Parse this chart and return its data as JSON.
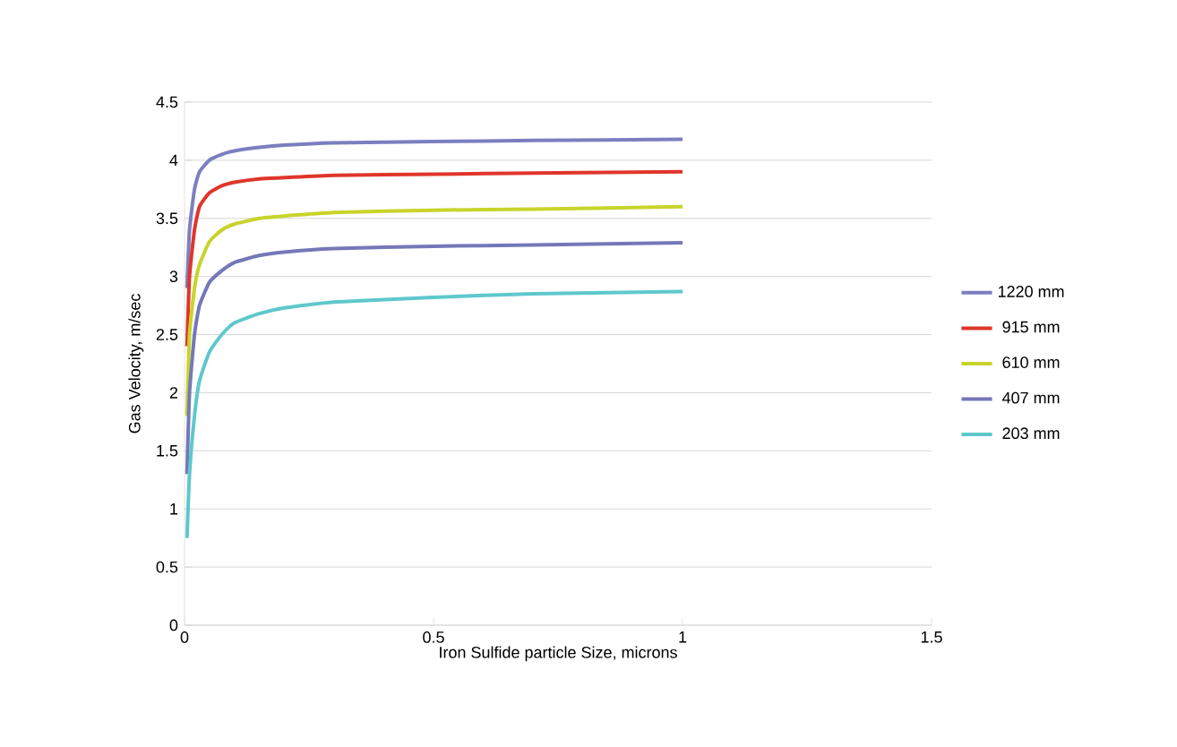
{
  "chart_data": {
    "type": "line",
    "xlabel": "Iron Sulfide particle Size, microns",
    "ylabel": "Gas Velocity, m/sec",
    "xlim": [
      0,
      1.5
    ],
    "xticks": [
      0,
      0.5,
      1,
      1.5
    ],
    "ylim": [
      0,
      4.5
    ],
    "yticks": [
      0,
      0.5,
      1,
      1.5,
      2,
      2.5,
      3,
      3.5,
      4,
      4.5
    ],
    "grid": "y",
    "legend": "right",
    "x": [
      0.005,
      0.01,
      0.02,
      0.03,
      0.05,
      0.075,
      0.1,
      0.15,
      0.2,
      0.3,
      0.5,
      0.7,
      1
    ],
    "series": [
      {
        "name": "1220 mm",
        "color": "#7b7fc0",
        "values": [
          2.9,
          3.4,
          3.75,
          3.9,
          4.0,
          4.05,
          4.08,
          4.11,
          4.13,
          4.15,
          4.16,
          4.17,
          4.18
        ]
      },
      {
        "name": "915 mm",
        "color": "#e0352b",
        "values": [
          2.4,
          3.0,
          3.4,
          3.6,
          3.72,
          3.78,
          3.81,
          3.84,
          3.85,
          3.87,
          3.88,
          3.89,
          3.9
        ]
      },
      {
        "name": "610 mm",
        "color": "#c8d42a",
        "values": [
          1.8,
          2.5,
          2.9,
          3.1,
          3.3,
          3.4,
          3.45,
          3.5,
          3.52,
          3.55,
          3.57,
          3.58,
          3.6
        ]
      },
      {
        "name": "407 mm",
        "color": "#7478b8",
        "values": [
          1.3,
          2.0,
          2.5,
          2.75,
          2.95,
          3.05,
          3.12,
          3.18,
          3.21,
          3.24,
          3.26,
          3.27,
          3.29
        ]
      },
      {
        "name": "203 mm",
        "color": "#5ec8cc",
        "values": [
          0.75,
          1.3,
          1.8,
          2.1,
          2.35,
          2.5,
          2.6,
          2.68,
          2.73,
          2.78,
          2.82,
          2.85,
          2.87
        ]
      }
    ]
  }
}
